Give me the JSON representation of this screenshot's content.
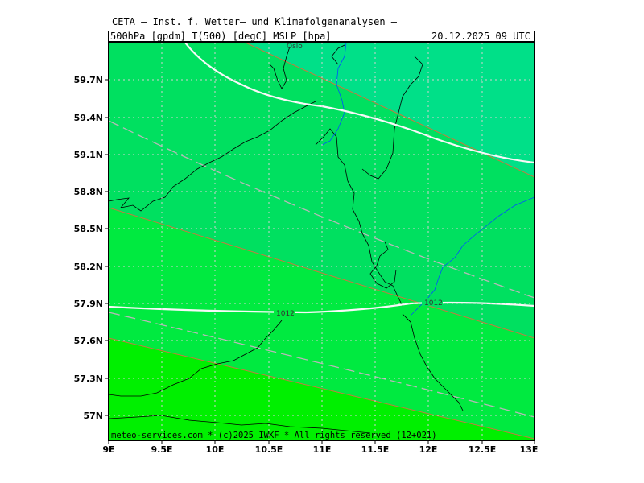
{
  "header": {
    "title": "CETA – Inst. f. Wetter– und Klimafolgenanalysen –",
    "params": "500hPa [gpdm] T(500) [degC] MSLP [hpa]",
    "datetime": "20.12.2025 09 UTC"
  },
  "map": {
    "lat_labels": [
      "59.7N",
      "59.4N",
      "59.1N",
      "58.8N",
      "58.5N",
      "58.2N",
      "57.9N",
      "57.6N",
      "57.3N",
      "57N"
    ],
    "lon_labels": [
      "9E",
      "9.5E",
      "10E",
      "10.5E",
      "11E",
      "11.5E",
      "12E",
      "12.5E",
      "13E"
    ],
    "isobar_labels": [
      "1012",
      "1012"
    ],
    "city": "Oslo",
    "footer": "meteo-services.com * (c)2025 IWKF * All rights reserved (12+021)"
  },
  "colors": {
    "band_cyan": "#00e088",
    "band_green1": "#00e060",
    "band_green2": "#00ea40",
    "band_green3": "#00f000",
    "isobar": "#ffffff",
    "geopotential": "#b0b0b0",
    "temp_contour": "#c87840",
    "coast": "#000000",
    "border": "#0050ff",
    "grid": "#c8c8c8"
  }
}
